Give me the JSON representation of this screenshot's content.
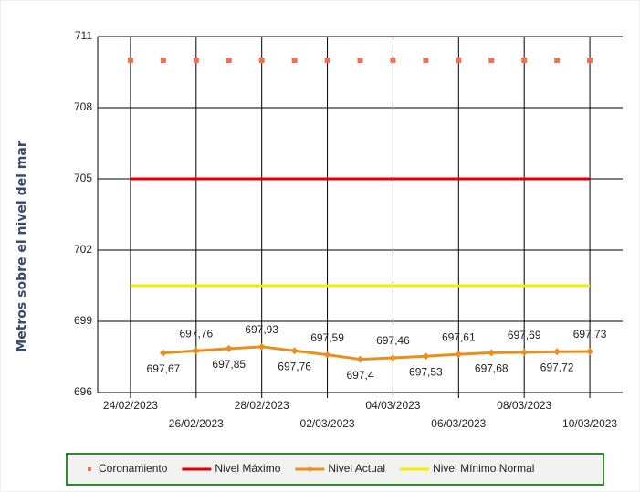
{
  "chart_data": {
    "type": "line",
    "y_label": "Metros sobre  el nivel del mar",
    "x": [
      "24/02/2023",
      "25/02/2023",
      "26/02/2023",
      "27/02/2023",
      "28/02/2023",
      "01/03/2023",
      "02/03/2023",
      "03/03/2023",
      "04/03/2023",
      "05/03/2023",
      "06/03/2023",
      "07/03/2023",
      "08/03/2023",
      "09/03/2023",
      "10/03/2023"
    ],
    "xlim": [
      "23/02/2023",
      "11/03/2023"
    ],
    "xticks": [
      "24/02/2023",
      "26/02/2023",
      "28/02/2023",
      "02/03/2023",
      "04/03/2023",
      "06/03/2023",
      "08/03/2023",
      "10/03/2023"
    ],
    "ylim": [
      696,
      711
    ],
    "yticks": [
      696,
      699,
      702,
      705,
      708,
      711
    ],
    "grid": true,
    "legend": "bottom",
    "series": [
      {
        "name": "Coronamiento",
        "color": "#f07050",
        "style": "markers",
        "values": [
          710,
          710,
          710,
          710,
          710,
          710,
          710,
          710,
          710,
          710,
          710,
          710,
          710,
          710,
          710
        ]
      },
      {
        "name": "Nivel Máximo",
        "color": "#e00000",
        "style": "line",
        "values": [
          705,
          705,
          705,
          705,
          705,
          705,
          705,
          705,
          705,
          705,
          705,
          705,
          705,
          705,
          705
        ]
      },
      {
        "name": "Nivel Actual",
        "color": "#e8901e",
        "style": "line-markers",
        "values": [
          null,
          697.67,
          697.76,
          697.85,
          697.93,
          697.76,
          697.59,
          697.4,
          697.46,
          697.53,
          697.61,
          697.68,
          697.69,
          697.72,
          697.73
        ],
        "value_labels": [
          null,
          "697,67",
          "697,76",
          "697,85",
          "697,93",
          "697,76",
          "697,59",
          "697,4",
          "697,46",
          "697,53",
          "697,61",
          "697,68",
          "697,69",
          "697,72",
          "697,73"
        ]
      },
      {
        "name": "Nivel Mínimo Normal",
        "color": "#f0f000",
        "style": "line",
        "values": [
          700.5,
          700.5,
          700.5,
          700.5,
          700.5,
          700.5,
          700.5,
          700.5,
          700.5,
          700.5,
          700.5,
          700.5,
          700.5,
          700.5,
          700.5
        ]
      }
    ]
  }
}
